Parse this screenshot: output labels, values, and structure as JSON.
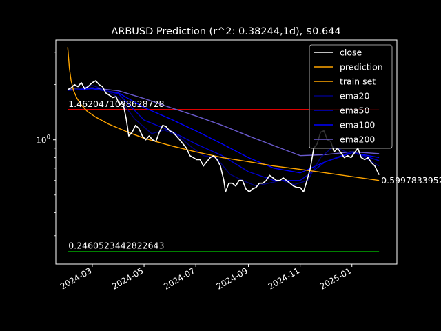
{
  "chart_data": {
    "type": "line",
    "title": "ARBUSD Prediction (r^2: 0.38244,1d), $0.644",
    "xlabel": "",
    "ylabel": "",
    "y_scale": "log",
    "ylim": [
      0.21,
      3.5
    ],
    "xlim": [
      "2024-01-18",
      "2025-02-23"
    ],
    "x_ticks": [
      "2024-03-01",
      "2024-05-01",
      "2024-07-01",
      "2024-09-01",
      "2024-11-01",
      "2025-01-01"
    ],
    "x_tick_labels": [
      "2024-03",
      "2024-05",
      "2024-07",
      "2024-09",
      "2024-11",
      "2025-01"
    ],
    "y_ticks": [
      1.0
    ],
    "y_tick_labels": [
      "10^0"
    ],
    "legend_position": "top-right",
    "grid": false,
    "annotations": [
      {
        "text": "1.4620471098628728",
        "x": "2024-02-01",
        "y": 1.462047109862873
      },
      {
        "text": "0.2460523442822643",
        "x": "2024-02-01",
        "y": 0.2460523442822643
      },
      {
        "text": "0.5997833952",
        "x": "2025-02-02",
        "y": 0.5997833952
      }
    ],
    "hlines": [
      {
        "y": 1.462047109862873,
        "x0": "2024-02-01",
        "x1": "2025-02-02",
        "color": "#ff0000"
      },
      {
        "y": 0.2460523442822643,
        "x0": "2024-02-01",
        "x1": "2025-02-02",
        "color": "#008000"
      }
    ],
    "series": [
      {
        "name": "close",
        "color": "#ffffff",
        "width": 1.6,
        "x": [
          "2024-02-01",
          "2024-02-05",
          "2024-02-09",
          "2024-02-13",
          "2024-02-17",
          "2024-02-21",
          "2024-02-25",
          "2024-03-01",
          "2024-03-05",
          "2024-03-09",
          "2024-03-13",
          "2024-03-17",
          "2024-03-21",
          "2024-03-25",
          "2024-03-29",
          "2024-04-02",
          "2024-04-06",
          "2024-04-10",
          "2024-04-13",
          "2024-04-17",
          "2024-04-21",
          "2024-04-25",
          "2024-04-29",
          "2024-05-03",
          "2024-05-07",
          "2024-05-11",
          "2024-05-15",
          "2024-05-19",
          "2024-05-23",
          "2024-05-27",
          "2024-05-31",
          "2024-06-04",
          "2024-06-08",
          "2024-06-12",
          "2024-06-16",
          "2024-06-20",
          "2024-06-24",
          "2024-06-28",
          "2024-07-02",
          "2024-07-06",
          "2024-07-10",
          "2024-07-14",
          "2024-07-18",
          "2024-07-22",
          "2024-07-26",
          "2024-07-30",
          "2024-08-03",
          "2024-08-05",
          "2024-08-09",
          "2024-08-13",
          "2024-08-17",
          "2024-08-21",
          "2024-08-25",
          "2024-08-29",
          "2024-09-02",
          "2024-09-06",
          "2024-09-10",
          "2024-09-14",
          "2024-09-18",
          "2024-09-22",
          "2024-09-26",
          "2024-09-30",
          "2024-10-04",
          "2024-10-08",
          "2024-10-12",
          "2024-10-16",
          "2024-10-20",
          "2024-10-24",
          "2024-10-28",
          "2024-11-01",
          "2024-11-05",
          "2024-11-09",
          "2024-11-13",
          "2024-11-17",
          "2024-11-21",
          "2024-11-25",
          "2024-11-29",
          "2024-12-03",
          "2024-12-07",
          "2024-12-11",
          "2024-12-15",
          "2024-12-19",
          "2024-12-23",
          "2024-12-27",
          "2024-12-31",
          "2025-01-04",
          "2025-01-08",
          "2025-01-12",
          "2025-01-16",
          "2025-01-20",
          "2025-01-24",
          "2025-01-28",
          "2025-02-02"
        ],
        "y": [
          1.88,
          1.92,
          2.0,
          1.95,
          2.05,
          1.9,
          1.95,
          2.05,
          2.1,
          2.0,
          1.95,
          1.8,
          1.75,
          1.7,
          1.72,
          1.55,
          1.6,
          1.3,
          1.05,
          1.1,
          1.2,
          1.15,
          1.05,
          1.0,
          1.05,
          1.0,
          0.98,
          1.1,
          1.2,
          1.18,
          1.12,
          1.1,
          1.05,
          1.0,
          0.95,
          0.9,
          0.82,
          0.8,
          0.78,
          0.78,
          0.72,
          0.76,
          0.8,
          0.82,
          0.78,
          0.72,
          0.6,
          0.52,
          0.58,
          0.58,
          0.56,
          0.6,
          0.6,
          0.54,
          0.52,
          0.54,
          0.55,
          0.58,
          0.58,
          0.6,
          0.64,
          0.62,
          0.6,
          0.6,
          0.62,
          0.6,
          0.58,
          0.56,
          0.55,
          0.55,
          0.52,
          0.6,
          0.7,
          0.9,
          0.95,
          1.1,
          1.12,
          1.0,
          0.98,
          0.86,
          0.9,
          0.85,
          0.8,
          0.82,
          0.8,
          0.85,
          0.9,
          0.8,
          0.78,
          0.8,
          0.75,
          0.72,
          0.644
        ]
      },
      {
        "name": "prediction",
        "color": "#ffa500",
        "width": 1.4,
        "x": [
          "2024-02-01",
          "2024-02-03",
          "2024-02-05",
          "2024-02-08",
          "2024-02-12",
          "2024-02-17",
          "2024-02-24",
          "2024-03-05",
          "2024-03-20",
          "2024-04-10",
          "2024-05-01",
          "2024-06-01",
          "2024-07-01",
          "2024-08-01",
          "2024-09-01",
          "2024-10-01",
          "2024-11-01",
          "2024-12-01",
          "2025-01-01",
          "2025-02-02"
        ],
        "y": [
          3.2,
          2.45,
          2.1,
          1.85,
          1.68,
          1.55,
          1.43,
          1.33,
          1.22,
          1.11,
          1.02,
          0.93,
          0.86,
          0.8,
          0.76,
          0.72,
          0.69,
          0.66,
          0.63,
          0.6
        ]
      },
      {
        "name": "train set",
        "color": "#ffa500",
        "width": 1.0,
        "x": [],
        "y": []
      },
      {
        "name": "ema20",
        "color": "#000080",
        "width": 1.4,
        "x": [
          "2024-02-01",
          "2024-02-15",
          "2024-03-01",
          "2024-03-15",
          "2024-04-01",
          "2024-04-20",
          "2024-05-10",
          "2024-05-25",
          "2024-06-10",
          "2024-06-25",
          "2024-07-10",
          "2024-07-25",
          "2024-08-10",
          "2024-08-25",
          "2024-09-10",
          "2024-09-25",
          "2024-10-10",
          "2024-10-25",
          "2024-11-10",
          "2024-11-25",
          "2024-12-10",
          "2024-12-25",
          "2025-01-10",
          "2025-02-02"
        ],
        "y": [
          1.86,
          1.9,
          1.98,
          1.88,
          1.7,
          1.3,
          1.08,
          1.13,
          1.05,
          0.92,
          0.82,
          0.8,
          0.65,
          0.6,
          0.56,
          0.58,
          0.6,
          0.57,
          0.6,
          0.8,
          0.92,
          0.86,
          0.83,
          0.72
        ]
      },
      {
        "name": "ema50",
        "color": "#0000cd",
        "width": 1.4,
        "x": [
          "2024-02-01",
          "2024-03-01",
          "2024-04-01",
          "2024-05-01",
          "2024-06-01",
          "2024-07-01",
          "2024-08-01",
          "2024-09-01",
          "2024-10-01",
          "2024-11-01",
          "2024-12-01",
          "2025-01-01",
          "2025-02-02"
        ],
        "y": [
          1.86,
          1.92,
          1.78,
          1.28,
          1.12,
          0.95,
          0.82,
          0.67,
          0.6,
          0.6,
          0.76,
          0.86,
          0.77
        ]
      },
      {
        "name": "ema100",
        "color": "#0000ff",
        "width": 1.4,
        "x": [
          "2024-02-01",
          "2024-03-01",
          "2024-04-01",
          "2024-05-01",
          "2024-06-01",
          "2024-07-01",
          "2024-08-01",
          "2024-09-01",
          "2024-10-01",
          "2024-11-01",
          "2024-12-01",
          "2025-01-01",
          "2025-02-02"
        ],
        "y": [
          1.86,
          1.9,
          1.8,
          1.5,
          1.3,
          1.12,
          0.95,
          0.8,
          0.7,
          0.66,
          0.76,
          0.85,
          0.8
        ]
      },
      {
        "name": "ema200",
        "color": "#6a5acd",
        "width": 1.4,
        "x": [
          "2024-02-01",
          "2024-03-01",
          "2024-04-01",
          "2024-05-01",
          "2024-06-01",
          "2024-07-01",
          "2024-08-01",
          "2024-09-01",
          "2024-10-01",
          "2024-11-01",
          "2024-12-01",
          "2025-01-01",
          "2025-02-02"
        ],
        "y": [
          1.88,
          1.92,
          1.85,
          1.68,
          1.5,
          1.35,
          1.2,
          1.05,
          0.93,
          0.82,
          0.83,
          0.86,
          0.84
        ]
      }
    ]
  }
}
